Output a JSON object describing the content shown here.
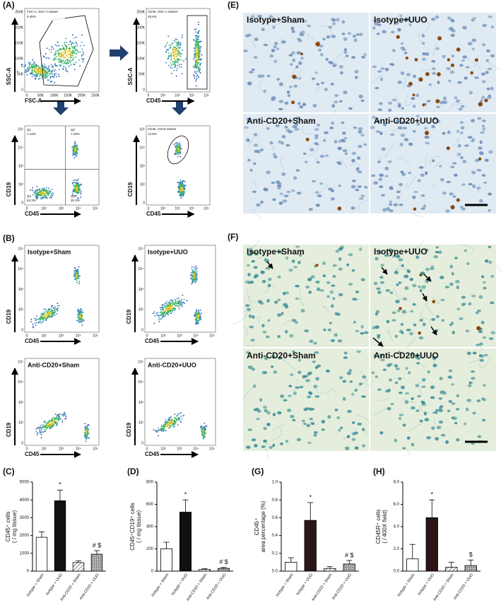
{
  "figure_a": {
    "label": "(A)",
    "plots": [
      {
        "title": "FSC-A, SSC-A subset",
        "percent": "9.45%",
        "xlabel": "FSC-A",
        "ylabel": "SSC-A",
        "xticks": [
          "0",
          "50K",
          "100K",
          "150K",
          "200K",
          "250K"
        ],
        "yticks": [
          "0",
          "50K",
          "100K",
          "150K",
          "200K",
          "250K"
        ]
      },
      {
        "title": "CD45, SSC-A subset",
        "percent": "45.6%",
        "xlabel": "CD45",
        "ylabel": "SSC-A",
        "xticks": [
          "0",
          "10²",
          "10³",
          "10⁴",
          "10⁵"
        ],
        "yticks": [
          "0",
          "50K",
          "100K",
          "150K",
          "200K",
          "250K"
        ]
      },
      {
        "quadrants": [
          "Q1",
          "1.13%",
          "Q2",
          "7.29%",
          "Q4",
          "53.3%",
          "Q3",
          "30.3%"
        ],
        "xlabel": "CD45",
        "ylabel": "CD19",
        "xticks": [
          "0",
          "10²",
          "10³",
          "10⁴",
          "10⁵"
        ],
        "yticks": [
          "0",
          "10²",
          "10³",
          "10⁴",
          "10⁵"
        ]
      },
      {
        "title": "CD45, CD19 subset",
        "percent": "14.9%",
        "xlabel": "CD45",
        "ylabel": "CD19",
        "xticks": [
          "0",
          "10²",
          "10³",
          "10⁴",
          "10⁵"
        ],
        "yticks": [
          "0",
          "10²",
          "10³",
          "10⁴",
          "10⁵"
        ]
      }
    ]
  },
  "figure_b": {
    "label": "(B)",
    "plots": [
      {
        "title": "Isotype+Sham",
        "xlabel": "CD45",
        "ylabel": "CD19",
        "xticks": [
          "0",
          "10²",
          "10³",
          "10⁴",
          "10⁵"
        ],
        "yticks": [
          "0",
          "10²",
          "10³",
          "10⁴",
          "10⁵"
        ]
      },
      {
        "title": "Isotype+UUO",
        "xlabel": "CD45",
        "ylabel": "CD19",
        "xticks": [
          "0",
          "10²",
          "10³",
          "10⁴",
          "10⁵"
        ],
        "yticks": [
          "0",
          "10²",
          "10³",
          "10⁴",
          "10⁵"
        ]
      },
      {
        "title": "Anti-CD20+Sham",
        "xlabel": "CD45",
        "ylabel": "CD19",
        "xticks": [
          "0",
          "10²",
          "10³",
          "10⁴",
          "10⁵"
        ],
        "yticks": [
          "0",
          "10²",
          "10³",
          "10⁴",
          "10⁵"
        ]
      },
      {
        "title": "Anti-CD20+UUO",
        "xlabel": "CD45",
        "ylabel": "CD19",
        "xticks": [
          "0",
          "10²",
          "10³",
          "10⁴",
          "10⁵"
        ],
        "yticks": [
          "0",
          "10²",
          "10³",
          "10⁴",
          "10⁵"
        ]
      }
    ]
  },
  "figure_e": {
    "label": "(E)",
    "images": [
      "Isotype+Sham",
      "Isotype+UUO",
      "Anti-CD20+Sham",
      "Anti-CD20+UUO"
    ]
  },
  "figure_f": {
    "label": "(F)",
    "images": [
      "Isotype+Sham",
      "Isotype+UUO",
      "Anti-CD20+Sham",
      "Anti-CD20+UUO"
    ]
  },
  "chart_data": [
    {
      "type": "bar",
      "label": "(C)",
      "ylabel": [
        "CD45⁺ cells",
        "( / mg tissue)"
      ],
      "categories": [
        "Isotype + Sham",
        "Isotype + UUO",
        "Anti-CD20 + Sham",
        "Anti-CD20 + UUO"
      ],
      "values": [
        1900,
        3950,
        480,
        950
      ],
      "errors": [
        300,
        600,
        100,
        200
      ],
      "annotations": [
        null,
        "*",
        null,
        "# $"
      ],
      "colors": [
        "#ffffff",
        "#111111",
        "#ffffff",
        "#9a9a9a"
      ],
      "patterns": [
        "solid",
        "solid",
        "hatch",
        "dots"
      ],
      "ylim": [
        0,
        5000
      ],
      "yticks": [
        0,
        1000,
        2000,
        3000,
        4000,
        5000
      ]
    },
    {
      "type": "bar",
      "label": "(D)",
      "ylabel": [
        "CD45⁺CD19⁺ cells",
        "( / mg tissue)"
      ],
      "categories": [
        "Isotype + Sham",
        "Isotype + UUO",
        "Anti-CD20 + Sham",
        "Anti-CD20 + UUO"
      ],
      "values": [
        200,
        530,
        15,
        25
      ],
      "errors": [
        60,
        110,
        6,
        8
      ],
      "annotations": [
        null,
        "*",
        null,
        "# $"
      ],
      "colors": [
        "#ffffff",
        "#111111",
        "#ffffff",
        "#9a9a9a"
      ],
      "patterns": [
        "solid",
        "solid",
        "hatch",
        "dots"
      ],
      "ylim": [
        0,
        800
      ],
      "yticks": [
        0,
        200,
        400,
        600,
        800
      ]
    },
    {
      "type": "bar",
      "label": "(G)",
      "ylabel": [
        "CD45⁺",
        "area percentage (%)"
      ],
      "categories": [
        "Isotype + Sham",
        "Isotype + UUO",
        "Anti-CD20 + Sham",
        "Anti-CD20 + UUO"
      ],
      "values": [
        0.1,
        0.57,
        0.03,
        0.08
      ],
      "errors": [
        0.05,
        0.2,
        0.02,
        0.04
      ],
      "annotations": [
        null,
        "*",
        null,
        "# $"
      ],
      "colors": [
        "#ffffff",
        "#2a1616",
        "#ffffff",
        "#9a9a9a"
      ],
      "patterns": [
        "solid",
        "solid",
        "hatch",
        "dots"
      ],
      "ylim": [
        0,
        1.0
      ],
      "yticks": [
        {
          "value": 0,
          "label": "0.0"
        },
        0.2,
        0.4,
        0.6,
        0.8,
        {
          "value": 1,
          "label": "1.0"
        }
      ]
    },
    {
      "type": "bar",
      "label": "(H)",
      "ylabel": [
        "CD45R⁺ cells",
        "( / 400X field)"
      ],
      "categories": [
        "Isotype + Sham",
        "Isotype + UUO",
        "Anti-CD20 + Sham",
        "Anti-CD20 + UUO"
      ],
      "values": [
        1.1,
        4.8,
        0.35,
        0.5
      ],
      "errors": [
        1.3,
        1.6,
        0.45,
        0.5
      ],
      "annotations": [
        null,
        "*",
        null,
        "$"
      ],
      "colors": [
        "#ffffff",
        "#2a1616",
        "#ffffff",
        "#9a9a9a"
      ],
      "patterns": [
        "solid",
        "solid",
        "hatch",
        "dots"
      ],
      "ylim": [
        0,
        8
      ],
      "yticks": [
        {
          "value": 0,
          "label": "0.0"
        },
        {
          "value": 2,
          "label": "2.0"
        },
        {
          "value": 4,
          "label": "4.0"
        },
        {
          "value": 6,
          "label": "6.0"
        },
        {
          "value": 8,
          "label": "8.0"
        }
      ]
    }
  ]
}
